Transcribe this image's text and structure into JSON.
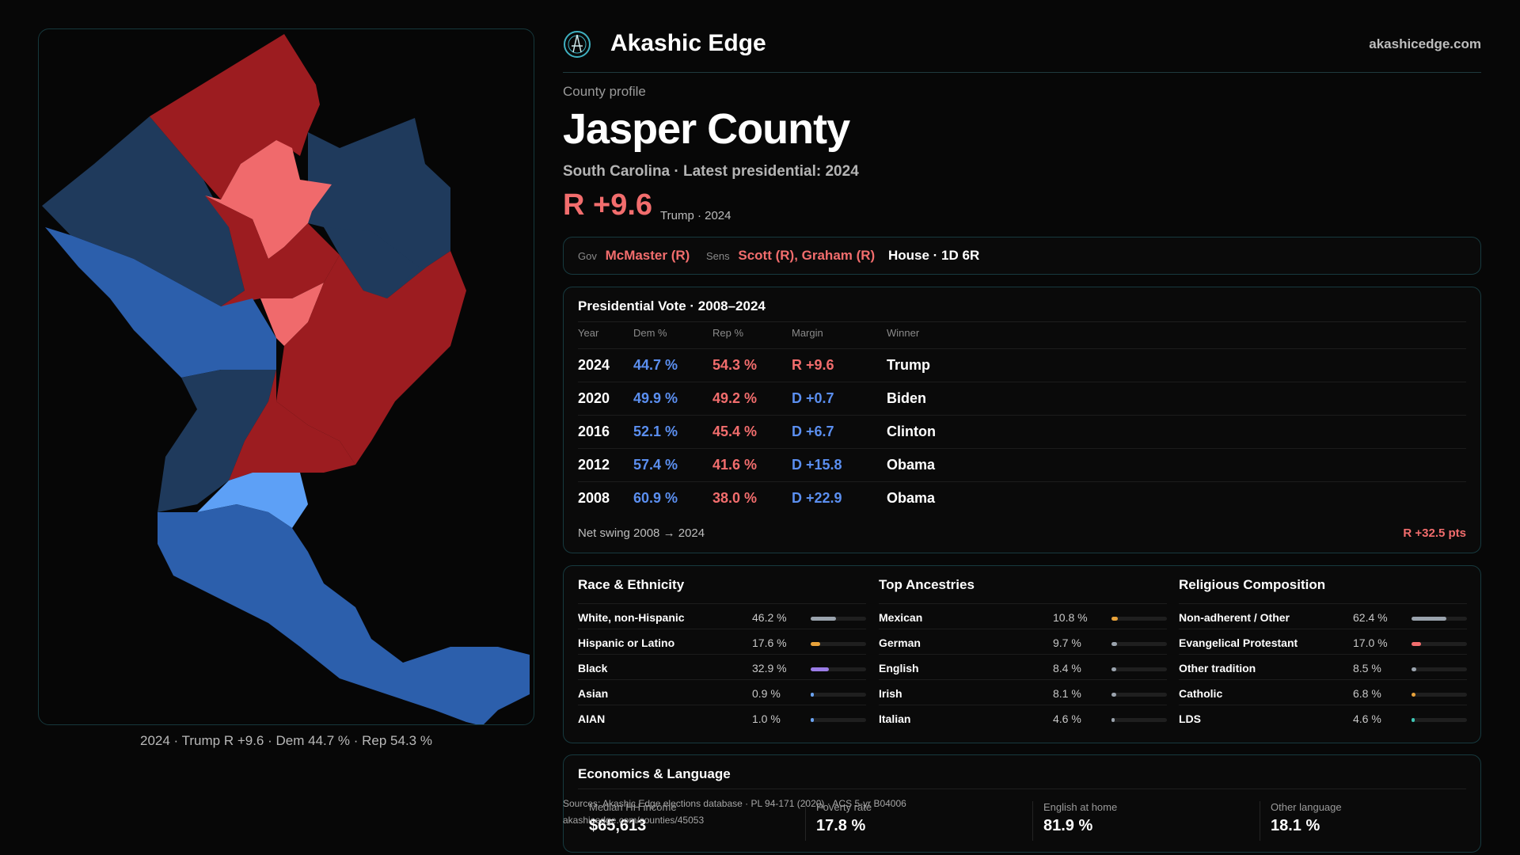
{
  "brand": {
    "name": "Akashic Edge",
    "site": "akashicedge.com",
    "logo_icon": "compass-emblem-icon"
  },
  "profile": {
    "kicker": "County profile",
    "title": "Jasper County",
    "subtitle": "South Carolina · Latest presidential: 2024",
    "margin": "R +9.6",
    "margin_note": "Trump · 2024",
    "margin_color": "#f26d6d"
  },
  "officials": {
    "gov_label": "Gov",
    "gov": "McMaster (R)",
    "sens_label": "Sens",
    "sens": "Scott (R), Graham (R)",
    "house": "House · 1D 6R"
  },
  "presidential": {
    "title": "Presidential Vote · 2008–2024",
    "columns": [
      "Year",
      "Dem %",
      "Rep %",
      "Margin",
      "Winner"
    ],
    "rows": [
      {
        "year": "2024",
        "dem": "44.7 %",
        "rep": "54.3 %",
        "margin": "R +9.6",
        "winner": "Trump",
        "party": "R"
      },
      {
        "year": "2020",
        "dem": "49.9 %",
        "rep": "49.2 %",
        "margin": "D +0.7",
        "winner": "Biden",
        "party": "D"
      },
      {
        "year": "2016",
        "dem": "52.1 %",
        "rep": "45.4 %",
        "margin": "D +6.7",
        "winner": "Clinton",
        "party": "D"
      },
      {
        "year": "2012",
        "dem": "57.4 %",
        "rep": "41.6 %",
        "margin": "D +15.8",
        "winner": "Obama",
        "party": "D"
      },
      {
        "year": "2008",
        "dem": "60.9 %",
        "rep": "38.0 %",
        "margin": "D +22.9",
        "winner": "Obama",
        "party": "D"
      }
    ],
    "swing_label": "Net swing 2008 → 2024",
    "swing_value": "R +32.5 pts"
  },
  "demographics": [
    {
      "title": "Race & Ethnicity",
      "rows": [
        {
          "label": "White, non-Hispanic",
          "value": "46.2 %",
          "share": 0.462,
          "color": "#9aa3ad"
        },
        {
          "label": "Hispanic or Latino",
          "value": "17.6 %",
          "share": 0.176,
          "color": "#e8a23a"
        },
        {
          "label": "Black",
          "value": "32.9 %",
          "share": 0.329,
          "color": "#9a7ce6"
        },
        {
          "label": "Asian",
          "value": "0.9 %",
          "share": 0.009,
          "color": "#6aa2f0"
        },
        {
          "label": "AIAN",
          "value": "1.0 %",
          "share": 0.01,
          "color": "#6aa2f0"
        }
      ]
    },
    {
      "title": "Top Ancestries",
      "rows": [
        {
          "label": "Mexican",
          "value": "10.8 %",
          "share": 0.108,
          "color": "#e8a23a"
        },
        {
          "label": "German",
          "value": "9.7 %",
          "share": 0.097,
          "color": "#9aa3ad"
        },
        {
          "label": "English",
          "value": "8.4 %",
          "share": 0.084,
          "color": "#9aa3ad"
        },
        {
          "label": "Irish",
          "value": "8.1 %",
          "share": 0.081,
          "color": "#9aa3ad"
        },
        {
          "label": "Italian",
          "value": "4.6 %",
          "share": 0.046,
          "color": "#9aa3ad"
        }
      ]
    },
    {
      "title": "Religious Composition",
      "rows": [
        {
          "label": "Non-adherent / Other",
          "value": "62.4 %",
          "share": 0.624,
          "color": "#9aa3ad"
        },
        {
          "label": "Evangelical Protestant",
          "value": "17.0 %",
          "share": 0.17,
          "color": "#f26d6d"
        },
        {
          "label": "Other tradition",
          "value": "8.5 %",
          "share": 0.085,
          "color": "#9aa3ad"
        },
        {
          "label": "Catholic",
          "value": "6.8 %",
          "share": 0.068,
          "color": "#e8a23a"
        },
        {
          "label": "LDS",
          "value": "4.6 %",
          "share": 0.046,
          "color": "#3fc6b5"
        }
      ]
    }
  ],
  "economics": {
    "title": "Economics & Language",
    "stats": [
      {
        "label": "Median HH income",
        "value": "$65,613"
      },
      {
        "label": "Poverty rate",
        "value": "17.8 %"
      },
      {
        "label": "English at home",
        "value": "81.9 %"
      },
      {
        "label": "Other language",
        "value": "18.1 %"
      }
    ]
  },
  "sources": {
    "line1": "Sources: Akashic Edge elections database · PL 94-171 (2020) · ACS 5-yr B04006",
    "line2": "akashicedge.com/counties/45053"
  },
  "map": {
    "caption": "2024 · Trump R +9.6 · Dem 44.7 % · Rep 54.3 %"
  },
  "colors": {
    "dem": "#5b8ff0",
    "rep": "#f26d6d",
    "strong_rep": "#9c1c20",
    "lean_rep": "#f06a6c",
    "strong_dem": "#2c5fac",
    "lean_dem": "#5da0f6",
    "navy_dem": "#1f3a5c"
  }
}
